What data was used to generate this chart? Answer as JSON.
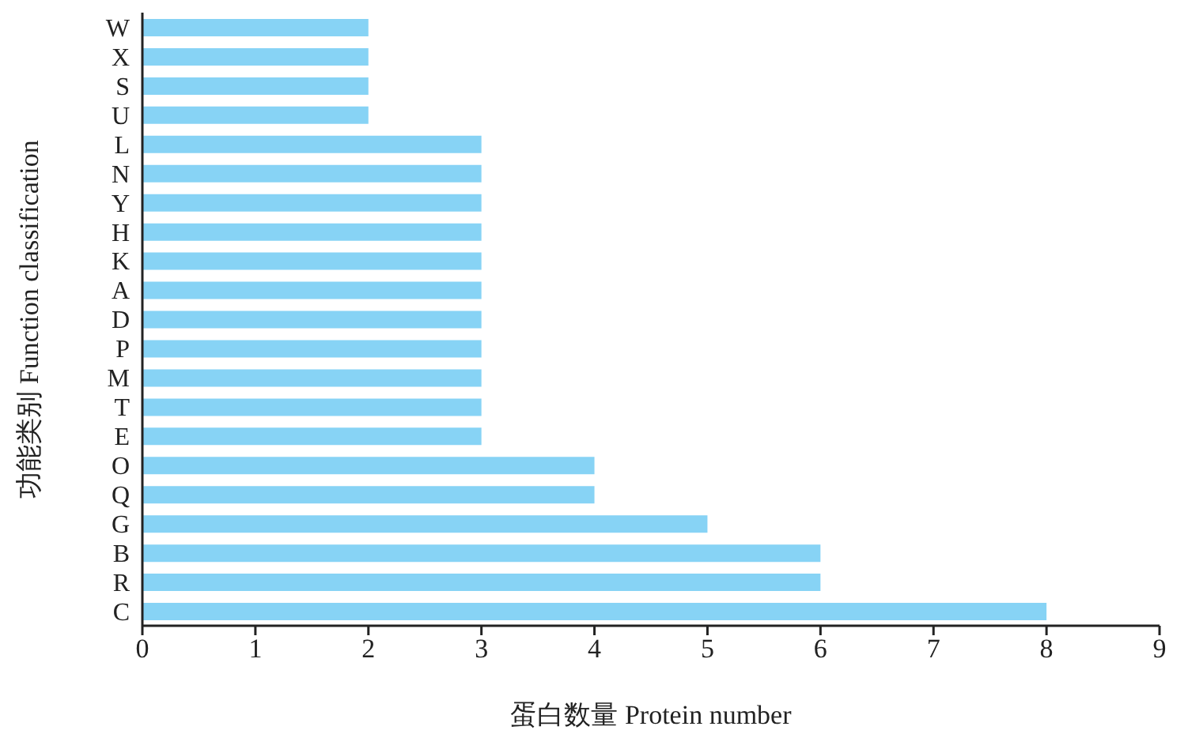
{
  "chart_data": {
    "type": "bar",
    "orientation": "horizontal",
    "xlabel": "蛋白数量 Protein number",
    "ylabel": "功能类别 Function classification",
    "categories": [
      "W",
      "X",
      "S",
      "U",
      "L",
      "N",
      "Y",
      "H",
      "K",
      "A",
      "D",
      "P",
      "M",
      "T",
      "E",
      "O",
      "Q",
      "G",
      "B",
      "R",
      "C"
    ],
    "values": [
      2,
      2,
      2,
      2,
      3,
      3,
      3,
      3,
      3,
      3,
      3,
      3,
      3,
      3,
      3,
      4,
      4,
      5,
      6,
      6,
      8
    ],
    "color": "#87d3f5",
    "xlim": [
      0,
      9
    ],
    "xticks": [
      0,
      1,
      2,
      3,
      4,
      5,
      6,
      7,
      8,
      9
    ],
    "grid": false,
    "legend": false
  }
}
